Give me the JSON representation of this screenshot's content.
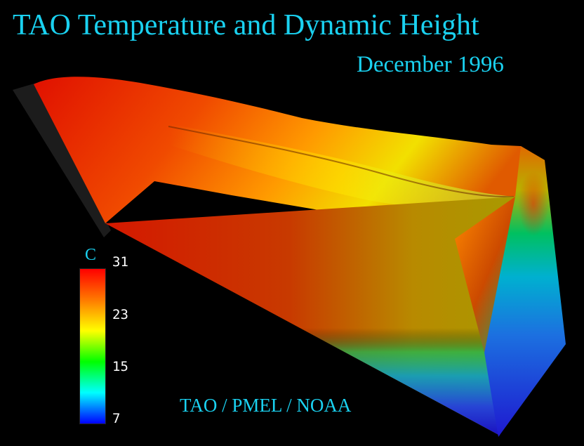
{
  "header": {
    "title": "TAO Temperature and Dynamic Height",
    "subtitle": "December 1996"
  },
  "colorbar": {
    "unit": "C",
    "ticks": [
      "31",
      "23",
      "15",
      "7"
    ],
    "stops": [
      "#ff0000",
      "#ff7a00",
      "#ffff00",
      "#00ff00",
      "#00ffff",
      "#0000ff"
    ]
  },
  "credit": "TAO / PMEL / NOAA",
  "colors": {
    "text": "#1ad1f0",
    "background": "#000000"
  }
}
